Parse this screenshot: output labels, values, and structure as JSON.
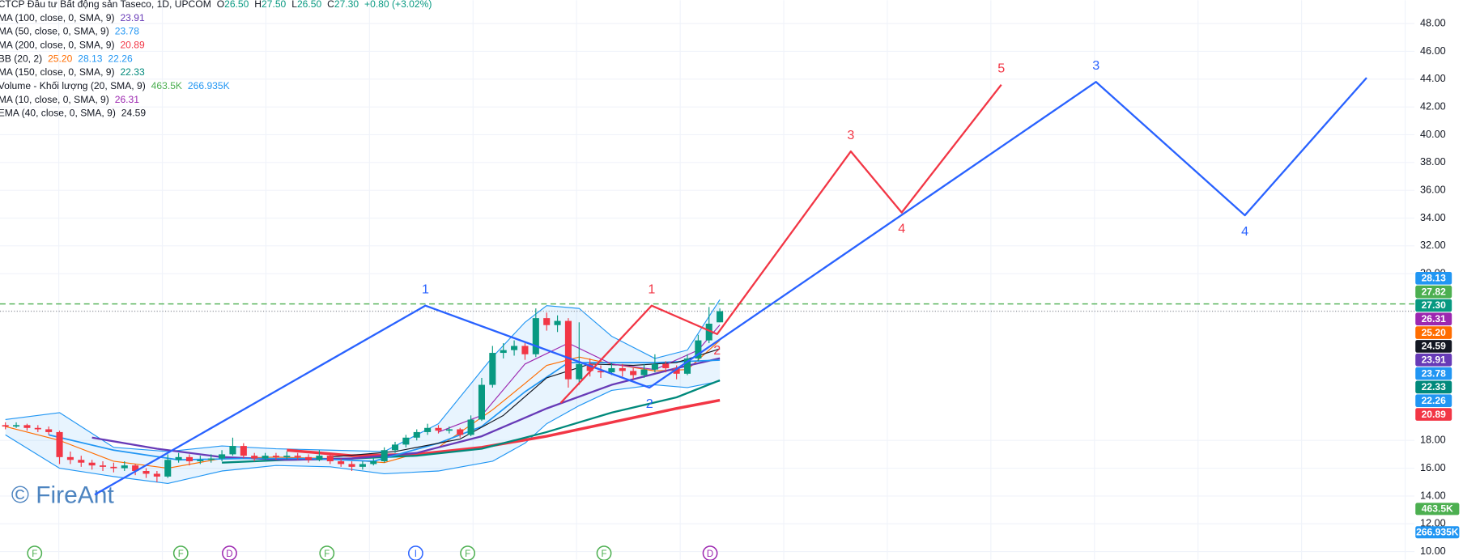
{
  "chart_data": {
    "type": "candlestick",
    "title": "CTCP Đầu tư Bất động sản Taseco, 1D, UPCOM",
    "ohlc": [
      {
        "label": "O",
        "value": "26.50"
      },
      {
        "label": "H",
        "value": "27.50"
      },
      {
        "label": "L",
        "value": "26.50"
      },
      {
        "label": "C",
        "value": "27.30"
      }
    ],
    "change": "+0.80 (+3.02%)",
    "up_color": "#089981",
    "down_color": "#f23645",
    "indicators": [
      {
        "label": "MA (100, close, 0, SMA, 9)",
        "values": [
          {
            "text": "23.91",
            "color": "#673ab7"
          }
        ]
      },
      {
        "label": "MA (50, close, 0, SMA, 9)",
        "values": [
          {
            "text": "23.78",
            "color": "#2196f3"
          }
        ]
      },
      {
        "label": "MA (200, close, 0, SMA, 9)",
        "values": [
          {
            "text": "20.89",
            "color": "#f23645"
          }
        ]
      },
      {
        "label": "BB (20, 2)",
        "values": [
          {
            "text": "25.20",
            "color": "#ff6d00"
          },
          {
            "text": "28.13",
            "color": "#2196f3"
          },
          {
            "text": "22.26",
            "color": "#2196f3"
          }
        ]
      },
      {
        "label": "MA (150, close, 0, SMA, 9)",
        "values": [
          {
            "text": "22.33",
            "color": "#00897b"
          }
        ]
      },
      {
        "label": "Volume - Khối lượng (20, SMA, 9)",
        "values": [
          {
            "text": "463.5K",
            "color": "#4caf50"
          },
          {
            "text": "266.935K",
            "color": "#2196f3"
          }
        ]
      },
      {
        "label": "MA (10, close, 0, SMA, 9)",
        "values": [
          {
            "text": "26.31",
            "color": "#9c27b0"
          }
        ]
      },
      {
        "label": "EMA (40, close, 0, SMA, 9)",
        "values": [
          {
            "text": "24.59",
            "color": "#131722"
          }
        ]
      }
    ],
    "ylim": [
      9.41,
      49.68
    ],
    "xlim": [
      -0.5,
      130.17
    ],
    "yticks": [
      {
        "value": 48,
        "label": "48.00"
      },
      {
        "value": 46,
        "label": "46.00"
      },
      {
        "value": 44,
        "label": "44.00"
      },
      {
        "value": 42,
        "label": "42.00"
      },
      {
        "value": 40,
        "label": "40.00"
      },
      {
        "value": 38,
        "label": "38.00"
      },
      {
        "value": 36,
        "label": "36.00"
      },
      {
        "value": 34,
        "label": "34.00"
      },
      {
        "value": 32,
        "label": "32.00"
      },
      {
        "value": 30,
        "label": "30.00"
      },
      {
        "value": 18,
        "label": "18.00"
      },
      {
        "value": 16,
        "label": "16.00"
      },
      {
        "value": 14,
        "label": "14.00"
      },
      {
        "value": 12,
        "label": "12.00"
      },
      {
        "value": 10,
        "label": "10.00"
      }
    ],
    "grid": true,
    "candles": [
      [
        19.1,
        19.3,
        18.8,
        19.0
      ],
      [
        19.0,
        19.3,
        18.9,
        19.1
      ],
      [
        19.1,
        19.2,
        18.7,
        18.9
      ],
      [
        18.9,
        19.1,
        18.6,
        18.8
      ],
      [
        18.8,
        19.0,
        18.4,
        18.6
      ],
      [
        18.6,
        18.7,
        16.3,
        16.8
      ],
      [
        16.8,
        17.2,
        16.3,
        16.6
      ],
      [
        16.6,
        16.9,
        16.1,
        16.4
      ],
      [
        16.4,
        16.6,
        15.9,
        16.2
      ],
      [
        16.2,
        16.5,
        15.8,
        16.1
      ],
      [
        16.1,
        16.4,
        15.7,
        16.0
      ],
      [
        16.0,
        16.5,
        15.8,
        16.2
      ],
      [
        16.2,
        16.3,
        15.5,
        15.8
      ],
      [
        15.8,
        16.0,
        15.3,
        15.6
      ],
      [
        15.6,
        15.8,
        15.0,
        15.4
      ],
      [
        15.4,
        17.0,
        15.3,
        16.6
      ],
      [
        16.6,
        17.1,
        16.4,
        16.8
      ],
      [
        16.8,
        17.0,
        16.2,
        16.5
      ],
      [
        16.5,
        16.9,
        16.3,
        16.6
      ],
      [
        16.6,
        17.0,
        16.4,
        16.7
      ],
      [
        16.7,
        17.3,
        16.5,
        17.0
      ],
      [
        17.0,
        18.2,
        16.9,
        17.6
      ],
      [
        17.6,
        17.8,
        16.7,
        16.9
      ],
      [
        16.9,
        17.1,
        16.5,
        16.7
      ],
      [
        16.7,
        17.1,
        16.5,
        16.9
      ],
      [
        16.9,
        17.1,
        16.6,
        16.8
      ],
      [
        16.8,
        17.2,
        16.6,
        16.9
      ],
      [
        16.9,
        17.1,
        16.6,
        16.8
      ],
      [
        16.8,
        17.0,
        16.4,
        16.6
      ],
      [
        16.6,
        17.3,
        16.5,
        16.9
      ],
      [
        16.9,
        17.0,
        16.3,
        16.5
      ],
      [
        16.5,
        16.7,
        16.1,
        16.3
      ],
      [
        16.3,
        16.5,
        15.8,
        16.1
      ],
      [
        16.1,
        16.5,
        15.9,
        16.3
      ],
      [
        16.3,
        16.8,
        16.2,
        16.5
      ],
      [
        16.5,
        17.5,
        16.4,
        17.3
      ],
      [
        17.3,
        17.9,
        17.1,
        17.7
      ],
      [
        17.7,
        18.4,
        17.5,
        18.2
      ],
      [
        18.2,
        18.8,
        18.0,
        18.6
      ],
      [
        18.6,
        19.2,
        18.4,
        18.9
      ],
      [
        18.9,
        19.1,
        18.5,
        18.7
      ],
      [
        18.7,
        19.0,
        18.5,
        18.8
      ],
      [
        18.8,
        18.9,
        18.2,
        18.4
      ],
      [
        18.4,
        19.8,
        18.3,
        19.5
      ],
      [
        19.5,
        22.5,
        19.4,
        22.0
      ],
      [
        22.0,
        24.8,
        21.8,
        24.3
      ],
      [
        24.3,
        25.0,
        23.9,
        24.5
      ],
      [
        24.5,
        25.2,
        24.1,
        24.8
      ],
      [
        24.8,
        25.0,
        23.8,
        24.2
      ],
      [
        24.2,
        27.5,
        24.0,
        26.8
      ],
      [
        26.8,
        27.2,
        25.9,
        26.3
      ],
      [
        26.3,
        27.0,
        25.8,
        26.6
      ],
      [
        26.6,
        26.8,
        21.8,
        22.4
      ],
      [
        22.4,
        26.5,
        22.0,
        23.5
      ],
      [
        23.5,
        23.9,
        22.6,
        23.0
      ],
      [
        23.0,
        23.4,
        22.5,
        22.9
      ],
      [
        22.9,
        23.6,
        22.7,
        23.2
      ],
      [
        23.2,
        23.5,
        22.6,
        23.0
      ],
      [
        23.0,
        23.2,
        22.4,
        22.7
      ],
      [
        22.7,
        23.5,
        22.5,
        23.1
      ],
      [
        23.1,
        24.2,
        22.9,
        23.5
      ],
      [
        23.5,
        23.7,
        22.9,
        23.2
      ],
      [
        23.2,
        23.4,
        22.4,
        22.8
      ],
      [
        22.8,
        24.2,
        22.7,
        23.9
      ],
      [
        23.9,
        25.6,
        23.7,
        25.2
      ],
      [
        25.2,
        27.6,
        25.0,
        26.4
      ],
      [
        26.5,
        27.5,
        26.5,
        27.3
      ]
    ],
    "bollinger": {
      "x": [
        0,
        5,
        10,
        15,
        20,
        25,
        30,
        35,
        40,
        45,
        48,
        50,
        53,
        56,
        60,
        63,
        66
      ],
      "upper": [
        19.5,
        20.0,
        17.5,
        17.2,
        17.6,
        17.4,
        17.3,
        17.2,
        19.2,
        24.0,
        26.5,
        27.7,
        27.5,
        25.5,
        23.9,
        24.5,
        28.13
      ],
      "basis": [
        19.0,
        18.0,
        16.5,
        16.0,
        16.7,
        16.8,
        16.7,
        16.4,
        17.5,
        20.2,
        22.1,
        23.4,
        24.0,
        23.5,
        23.0,
        23.1,
        25.2
      ],
      "lower": [
        18.4,
        16.0,
        15.4,
        14.9,
        15.8,
        16.2,
        16.1,
        15.6,
        15.8,
        16.5,
        17.8,
        19.2,
        20.5,
        21.6,
        22.0,
        21.8,
        22.26
      ],
      "band_color": "#2196f3",
      "basis_color": "#ff6d00"
    },
    "overlays": [
      {
        "color": "#f23645",
        "width": 3,
        "x": [
          26,
          32,
          38,
          44,
          50,
          56,
          62,
          66
        ],
        "values": [
          17.3,
          16.9,
          17.0,
          17.5,
          18.3,
          19.3,
          20.3,
          20.89
        ]
      },
      {
        "color": "#00897b",
        "width": 2,
        "x": [
          20,
          26,
          32,
          38,
          44,
          50,
          56,
          62,
          66
        ],
        "values": [
          16.4,
          16.6,
          16.7,
          16.9,
          17.4,
          18.6,
          20.0,
          21.1,
          22.33
        ]
      },
      {
        "color": "#673ab7",
        "width": 2,
        "x": [
          8,
          14,
          20,
          26,
          32,
          38,
          44,
          50,
          56,
          62,
          66
        ],
        "values": [
          18.2,
          17.4,
          16.8,
          16.6,
          16.7,
          17.1,
          18.3,
          20.3,
          22.0,
          23.2,
          23.91
        ]
      },
      {
        "color": "#2196f3",
        "width": 1.5,
        "x": [
          4,
          10,
          16,
          22,
          28,
          34,
          40,
          44,
          48,
          52,
          56,
          60,
          66
        ],
        "values": [
          18.4,
          17.3,
          16.6,
          16.7,
          16.7,
          16.5,
          17.8,
          19.0,
          21.5,
          23.6,
          23.6,
          23.6,
          23.78
        ]
      },
      {
        "color": "#131722",
        "width": 1,
        "x": [
          30,
          36,
          42,
          46,
          50,
          54,
          58,
          62,
          66
        ],
        "values": [
          16.8,
          17.2,
          18.1,
          19.8,
          22.5,
          23.5,
          23.4,
          23.6,
          24.59
        ]
      },
      {
        "color": "#9c27b0",
        "width": 1,
        "x": [
          40,
          44,
          48,
          52,
          56,
          60,
          64,
          66
        ],
        "values": [
          18.6,
          19.8,
          23.5,
          25.0,
          23.5,
          23.1,
          24.5,
          26.31
        ]
      }
    ],
    "levels": [
      {
        "value": 27.82,
        "color": "#4caf50",
        "dash": "6 4"
      },
      {
        "value": 27.3,
        "color": "#9598a1",
        "dash": "1 2"
      }
    ],
    "waves": [
      {
        "color": "#2962ff",
        "x": [
          8.25,
          38.8,
          59.5,
          100.75,
          114.5,
          125.75
        ],
        "values": [
          14.1,
          27.7,
          21.8,
          43.8,
          34.2,
          44.1
        ],
        "labels": [
          null,
          "1",
          "2",
          "3",
          "4",
          null
        ]
      },
      {
        "color": "#f23645",
        "x": [
          51.3,
          59.7,
          65.75,
          78.1,
          82.8,
          92
        ],
        "values": [
          20.7,
          27.7,
          25.65,
          38.8,
          34.4,
          43.6
        ],
        "labels": [
          null,
          "1",
          "2",
          "3",
          "4",
          "5"
        ]
      }
    ],
    "price_tags": [
      {
        "value": 28.13,
        "color": "#2196f3"
      },
      {
        "value": 27.82,
        "color": "#4caf50"
      },
      {
        "value": 27.3,
        "label": "27.30",
        "color": "#089981"
      },
      {
        "value": 26.31,
        "color": "#9c27b0"
      },
      {
        "value": 25.2,
        "label": "25.20",
        "color": "#ff6d00"
      },
      {
        "value": 24.59,
        "color": "#131722"
      },
      {
        "value": 23.91,
        "color": "#673ab7"
      },
      {
        "value": 23.78,
        "color": "#2196f3"
      },
      {
        "value": 22.33,
        "color": "#00897b"
      },
      {
        "value": 22.26,
        "color": "#2196f3"
      },
      {
        "value": 20.89,
        "color": "#f23645"
      }
    ],
    "volume_tags": [
      {
        "label": "463.5K",
        "color": "#4caf50"
      },
      {
        "label": "266.935K",
        "color": "#2196f3"
      }
    ],
    "events": [
      {
        "label": "F",
        "x": 2.7,
        "color": "#4caf50"
      },
      {
        "label": "F",
        "x": 16.2,
        "color": "#4caf50"
      },
      {
        "label": "D",
        "x": 20.7,
        "color": "#9c27b0"
      },
      {
        "label": "F",
        "x": 29.7,
        "color": "#4caf50"
      },
      {
        "label": "I",
        "x": 37.9,
        "color": "#2962ff"
      },
      {
        "label": "F",
        "x": 42.7,
        "color": "#4caf50"
      },
      {
        "label": "F",
        "x": 55.3,
        "color": "#4caf50"
      },
      {
        "label": "D",
        "x": 65.1,
        "color": "#9c27b0"
      }
    ],
    "watermark": "© FireAnt"
  }
}
